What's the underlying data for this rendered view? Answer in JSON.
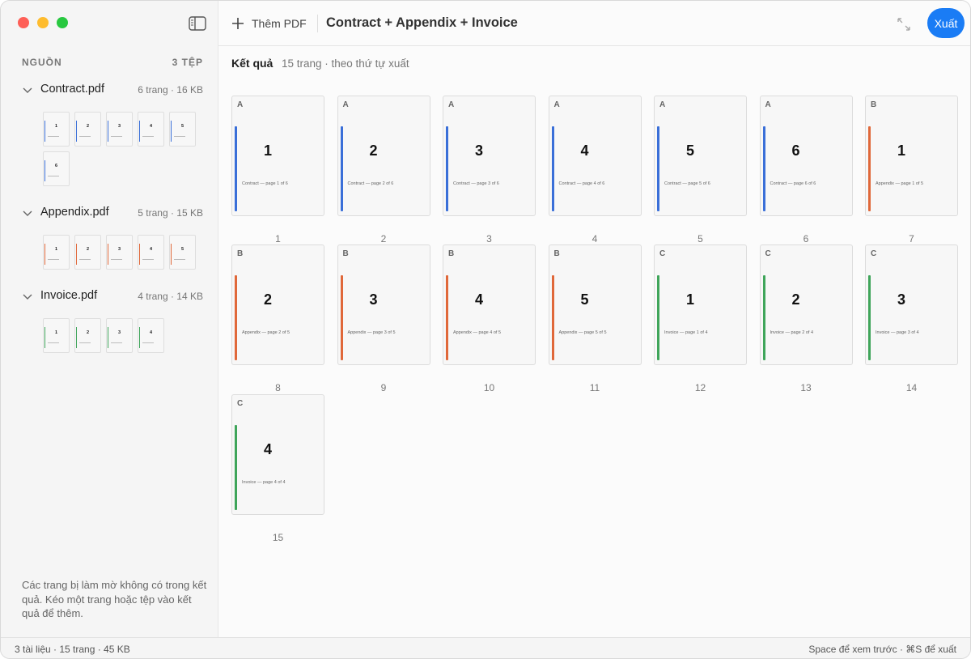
{
  "toolbar": {
    "add_button": "Thêm PDF",
    "title": "Contract + Appendix + Invoice",
    "export_button": "Xuất"
  },
  "sidebar": {
    "heading": "NGUỒN",
    "count": "3 TỆP",
    "files": [
      {
        "name": "Contract.pdf",
        "meta": "6 trang · 16 KB",
        "color": "#3a6fd8",
        "thumbs": [
          "1",
          "2",
          "3",
          "4",
          "5",
          "6"
        ]
      },
      {
        "name": "Appendix.pdf",
        "meta": "5 trang · 15 KB",
        "color": "#e0683a",
        "thumbs": [
          "1",
          "2",
          "3",
          "4",
          "5"
        ]
      },
      {
        "name": "Invoice.pdf",
        "meta": "4 trang · 14 KB",
        "color": "#3fa55a",
        "thumbs": [
          "1",
          "2",
          "3",
          "4"
        ]
      }
    ],
    "note": "Các trang bị làm mờ không có trong kết quả. Kéo một trang hoặc tệp vào kết quả để thêm."
  },
  "results": {
    "heading": "Kết quả",
    "meta": "15 trang · theo thứ tự xuất",
    "pages": [
      {
        "tag": "A",
        "number": "1",
        "caption": "Contract — page 1 of 6",
        "index": "1",
        "color": "#3a6fd8"
      },
      {
        "tag": "A",
        "number": "2",
        "caption": "Contract — page 2 of 6",
        "index": "2",
        "color": "#3a6fd8"
      },
      {
        "tag": "A",
        "number": "3",
        "caption": "Contract — page 3 of 6",
        "index": "3",
        "color": "#3a6fd8"
      },
      {
        "tag": "A",
        "number": "4",
        "caption": "Contract — page 4 of 6",
        "index": "4",
        "color": "#3a6fd8"
      },
      {
        "tag": "A",
        "number": "5",
        "caption": "Contract — page 5 of 6",
        "index": "5",
        "color": "#3a6fd8"
      },
      {
        "tag": "A",
        "number": "6",
        "caption": "Contract — page 6 of 6",
        "index": "6",
        "color": "#3a6fd8"
      },
      {
        "tag": "B",
        "number": "1",
        "caption": "Appendix — page 1 of 5",
        "index": "7",
        "color": "#e0683a"
      },
      {
        "tag": "B",
        "number": "2",
        "caption": "Appendix — page 2 of 5",
        "index": "8",
        "color": "#e0683a"
      },
      {
        "tag": "B",
        "number": "3",
        "caption": "Appendix — page 3 of 5",
        "index": "9",
        "color": "#e0683a"
      },
      {
        "tag": "B",
        "number": "4",
        "caption": "Appendix — page 4 of 5",
        "index": "10",
        "color": "#e0683a"
      },
      {
        "tag": "B",
        "number": "5",
        "caption": "Appendix — page 5 of 5",
        "index": "11",
        "color": "#e0683a"
      },
      {
        "tag": "C",
        "number": "1",
        "caption": "Invoice — page 1 of 4",
        "index": "12",
        "color": "#3fa55a"
      },
      {
        "tag": "C",
        "number": "2",
        "caption": "Invoice — page 2 of 4",
        "index": "13",
        "color": "#3fa55a"
      },
      {
        "tag": "C",
        "number": "3",
        "caption": "Invoice — page 3 of 4",
        "index": "14",
        "color": "#3fa55a"
      },
      {
        "tag": "C",
        "number": "4",
        "caption": "Invoice — page 4 of 4",
        "index": "15",
        "color": "#3fa55a"
      }
    ]
  },
  "status": {
    "left": "3 tài liệu · 15 trang · 45 KB",
    "right": "Space để xem trước · ⌘S để xuất"
  }
}
